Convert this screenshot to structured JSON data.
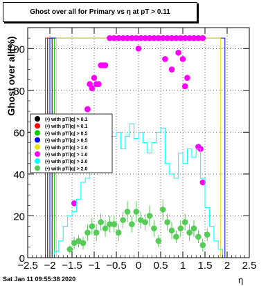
{
  "title": "Ghost over all for Primary vs   η at pT > 0.11",
  "ylabel": "Ghost over all(%)",
  "xlabel": "η",
  "footer": "Sat Jan 11 09:55:38 2020",
  "chart_data": {
    "type": "scatter",
    "xlim": [
      -2.5,
      2.5
    ],
    "ylim": [
      0,
      110
    ],
    "x_ticks": [
      -2.5,
      -2,
      -1.5,
      -1,
      -0.5,
      0,
      0.5,
      1,
      1.5,
      2,
      2.5
    ],
    "x_tick_labels": [
      "−2.5",
      "−2",
      "−1.5",
      "−1",
      "−0.5",
      "0",
      "0.5",
      "1",
      "1.5",
      "2",
      "2.5"
    ],
    "y_ticks": [
      0,
      20,
      40,
      60,
      80,
      100
    ],
    "y_tick_labels": [
      "0",
      "20",
      "40",
      "60",
      "80",
      "100"
    ],
    "grid": true,
    "legend_position": "left-middle",
    "series": [
      {
        "name": "(•) with pT/|q| > 0.1",
        "color": "#000000",
        "style": "hist",
        "x": [
          -2.05,
          -1.95
        ],
        "y": [
          105,
          105
        ]
      },
      {
        "name": "(•) with pT/|q| > 0.1",
        "color": "#ff0000",
        "style": "hist",
        "x": [
          -2.1,
          -2.0
        ],
        "y": [
          105,
          105
        ]
      },
      {
        "name": "(•) with pT/|q| > 0.5",
        "color": "#00cc00",
        "style": "hist",
        "x": [
          -2.0,
          -1.9
        ],
        "y": [
          105,
          105
        ]
      },
      {
        "name": "(•) with pT/|q| > 0.5",
        "color": "#0000ff",
        "style": "hist",
        "x": [
          -2.0,
          -1.95,
          1.9,
          1.95
        ],
        "y": [
          105,
          105,
          105,
          105
        ]
      },
      {
        "name": "(•) with pT/|q| > 1.0",
        "color": "#e6e600",
        "style": "hist",
        "x": [
          -1.85,
          -1.8,
          1.8,
          1.85
        ],
        "y": [
          105,
          105,
          105,
          105
        ]
      },
      {
        "name": "(•) with pT/|q| > 1.0",
        "color": "#ff00ff",
        "style": "points",
        "x": [
          -1.45,
          -1.35,
          -1.25,
          -1.15,
          -1.05,
          -0.95,
          -0.85,
          -0.75,
          -0.65,
          -0.55,
          -0.45,
          -0.35,
          -0.25,
          -0.15,
          -0.05,
          0.05,
          0.15,
          0.25,
          0.35,
          0.45,
          0.55,
          0.65,
          0.75,
          0.85,
          0.95,
          1.05,
          1.15,
          1.25,
          1.35,
          1.45,
          -1.3,
          -1.2,
          -1.1,
          -1.0,
          -0.9,
          -0.8,
          -1.45,
          -1.15,
          0.0,
          0.6,
          0.75,
          0.9,
          1.0,
          1.05,
          1.1,
          1.35,
          1.4,
          1.45
        ],
        "y": [
          26,
          45,
          55,
          71,
          81,
          83,
          92,
          92,
          105,
          105,
          105,
          105,
          105,
          105,
          105,
          105,
          105,
          105,
          105,
          105,
          105,
          105,
          105,
          105,
          105,
          105,
          105,
          105,
          105,
          105,
          57,
          63,
          83,
          86,
          83,
          92,
          45,
          71,
          100,
          95,
          90,
          98,
          95,
          82,
          86,
          53,
          52,
          36
        ]
      },
      {
        "name": "(•) with pT/|q| > 2.0",
        "color": "#00ffff",
        "style": "hist",
        "x": [
          -2.15,
          -2.05,
          -1.95,
          -1.85,
          -1.75,
          -1.65,
          -1.55,
          -1.45,
          -1.35,
          -1.25,
          -1.15,
          -1.05,
          -0.95,
          -0.85,
          -0.75,
          -0.65,
          -0.55,
          -0.45,
          -0.35,
          -0.25,
          -0.15,
          -0.05,
          0.05,
          0.15,
          0.25,
          0.35,
          0.45,
          0.55,
          0.65,
          0.75,
          0.85,
          0.95,
          1.05,
          1.15,
          1.25,
          1.35,
          1.45,
          1.55,
          1.65,
          1.75,
          1.85
        ],
        "y": [
          0,
          0,
          0,
          3,
          8,
          15,
          20,
          22,
          28,
          36,
          38,
          46,
          48,
          50,
          55,
          56,
          58,
          60,
          52,
          58,
          64,
          57,
          60,
          55,
          50,
          55,
          60,
          62,
          45,
          40,
          38,
          50,
          45,
          52,
          48,
          52,
          38,
          24,
          15,
          8,
          4
        ]
      },
      {
        "name": "(•) with pT/|q| > 2.0",
        "color": "#55cc55",
        "style": "points",
        "x": [
          -1.55,
          -1.45,
          -1.35,
          -1.25,
          -1.15,
          -1.05,
          -0.95,
          -0.85,
          -0.75,
          -0.65,
          -0.55,
          -0.45,
          -0.35,
          -0.25,
          -0.15,
          -0.05,
          0.05,
          0.15,
          0.25,
          0.35,
          0.45,
          0.55,
          0.65,
          0.75,
          0.85,
          0.95,
          1.05,
          1.15,
          1.25,
          1.35,
          1.45,
          1.55
        ],
        "y": [
          4,
          7,
          8,
          7,
          12,
          15,
          12,
          17,
          14,
          16,
          16,
          12,
          18,
          22,
          16,
          22,
          18,
          17,
          20,
          14,
          8,
          23,
          17,
          13,
          10,
          14,
          17,
          12,
          14,
          10,
          6,
          11
        ],
        "yerr": [
          2,
          3,
          3,
          3,
          4,
          4,
          4,
          4,
          4,
          4,
          4,
          4,
          4,
          5,
          4,
          5,
          4,
          4,
          5,
          4,
          3,
          5,
          4,
          4,
          3,
          4,
          4,
          4,
          4,
          3,
          3,
          3
        ]
      }
    ]
  }
}
